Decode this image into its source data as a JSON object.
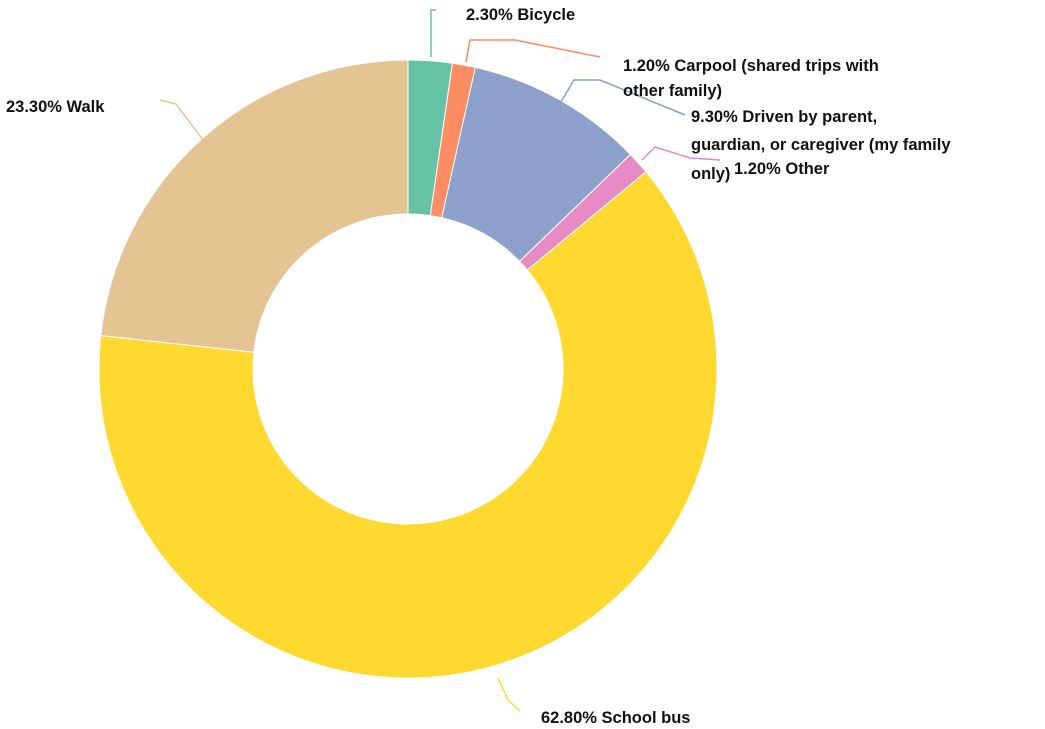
{
  "chart_data": {
    "type": "pie",
    "donut": true,
    "title": "",
    "slices": [
      {
        "name": "Bicycle",
        "value": 2.3,
        "label": "2.30% Bicycle",
        "color": "#66c2a5"
      },
      {
        "name": "Carpool (shared trips with other family)",
        "value": 1.2,
        "label_lines": [
          "1.20% Carpool (shared trips with",
          "other family)"
        ],
        "color": "#fc8d62"
      },
      {
        "name": "Driven by parent, guardian, or caregiver (my family only)",
        "value": 9.3,
        "label_lines": [
          "9.30% Driven by parent,",
          "guardian, or caregiver (my family",
          "only)"
        ],
        "color": "#8da0cb"
      },
      {
        "name": "Other",
        "value": 1.2,
        "label": "1.20% Other",
        "color": "#e78ac3"
      },
      {
        "name": "School bus",
        "value": 62.8,
        "label": "62.80% School bus",
        "color": "#ffd92f"
      },
      {
        "name": "Walk",
        "value": 23.3,
        "label": "23.30% Walk",
        "color": "#e5c494"
      }
    ]
  }
}
